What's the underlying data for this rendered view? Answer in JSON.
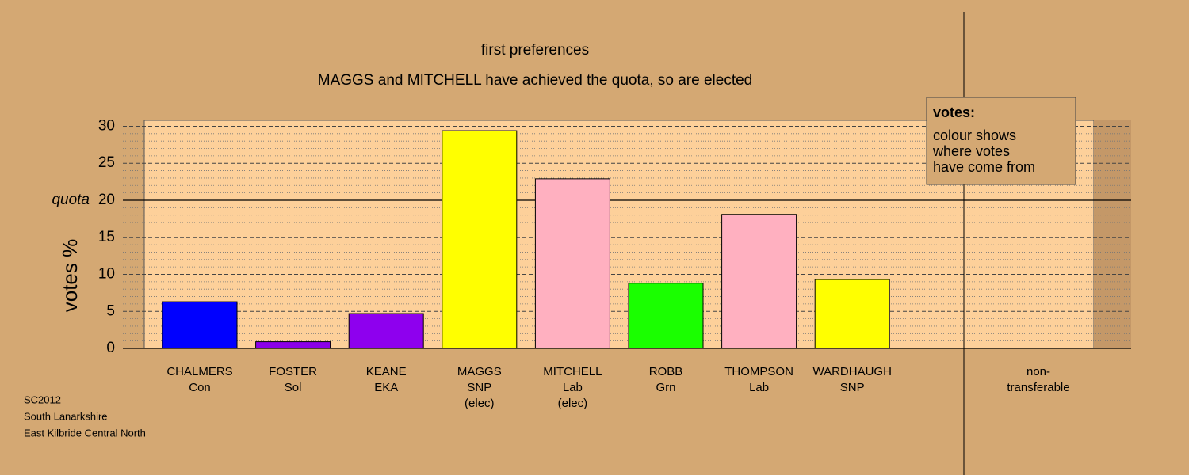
{
  "chart_data": {
    "type": "bar",
    "title": "first preferences",
    "subtitle": "MAGGS and MITCHELL have achieved the quota, so are elected",
    "y_label": "votes %",
    "categories": [
      [
        "CHALMERS",
        "Con"
      ],
      [
        "FOSTER",
        "Sol"
      ],
      [
        "KEANE",
        "EKA"
      ],
      [
        "MAGGS",
        "SNP",
        "(elec)"
      ],
      [
        "MITCHELL",
        "Lab",
        "(elec)"
      ],
      [
        "ROBB",
        "Grn"
      ],
      [
        "THOMPSON",
        "Lab"
      ],
      [
        "WARDHAUGH",
        "SNP"
      ],
      [
        "non-",
        "transferable"
      ]
    ],
    "values": [
      6.3,
      0.9,
      4.7,
      29.4,
      22.9,
      8.8,
      18.1,
      9.3,
      0
    ],
    "colors": [
      "#0000ff",
      "#8b00e8",
      "#8e00ee",
      "#ffff00",
      "#ffb0c0",
      "#1aff00",
      "#ffb0c0",
      "#ffff00",
      "#aaaaaa"
    ],
    "ylim": [
      0,
      30.8
    ],
    "yticks": [
      0,
      5,
      10,
      15,
      20,
      25,
      30
    ],
    "minor_yticks": [
      1,
      2,
      3,
      4,
      6,
      7,
      8,
      9,
      11,
      12,
      13,
      14,
      16,
      17,
      18,
      19,
      21,
      22,
      23,
      24,
      26,
      27,
      28,
      29
    ],
    "quota": {
      "value": 20,
      "label": "quota"
    },
    "legend": {
      "title": "votes:",
      "lines": [
        "colour shows",
        "where votes",
        "have come from"
      ]
    },
    "footer": [
      "SC2012",
      "South Lanarkshire",
      "East Kilbride Central North"
    ]
  }
}
